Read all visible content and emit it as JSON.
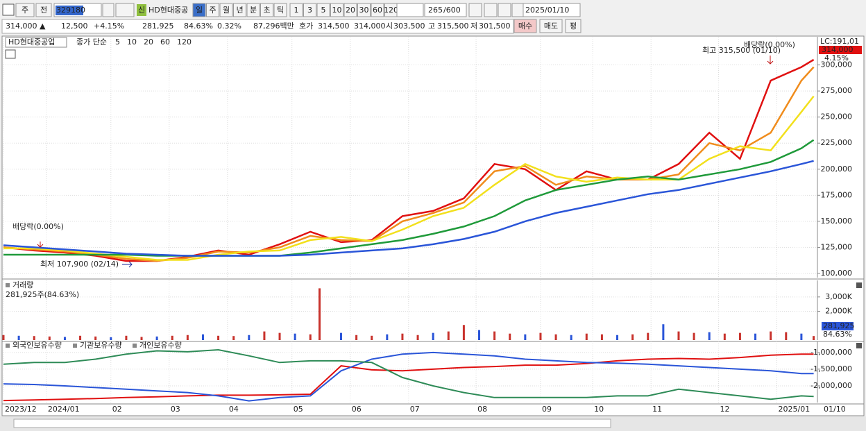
{
  "toolbar": {
    "period_type": "주",
    "prev": "전",
    "code": "329180",
    "badge": "신",
    "name": "HD현대중공",
    "periods": [
      "일",
      "주",
      "월",
      "년",
      "분",
      "초",
      "틱"
    ],
    "intervals": [
      "1",
      "3",
      "5",
      "10",
      "20",
      "30",
      "60",
      "120"
    ],
    "count": "265",
    "max": "/600",
    "date": "2025/01/10"
  },
  "quote": {
    "price": "314,000 ▲",
    "change": "12,500",
    "rate": "+4.15%",
    "volume": "281,925",
    "volume_rate": "84.63%",
    "turnover": "0.32%",
    "amount": "87,296백만",
    "bid_label": "호가",
    "ask": "314,500",
    "bid": "314,000",
    "open_label": "시",
    "open": "303,500",
    "high_label": "고",
    "high": "315,500",
    "low_label": "저",
    "low": "301,500",
    "buy": "매수",
    "sell": "매도",
    "eval": "평"
  },
  "chart_data": [
    {
      "type": "line",
      "title": "HD현대중공업",
      "legend_label": "종가 단순",
      "xlim": [
        0,
        265
      ],
      "ylim": [
        96000,
        327000
      ],
      "yticks": [
        {
          "value": 100000,
          "label": "100,000"
        },
        {
          "value": 125000,
          "label": "125,000"
        },
        {
          "value": 150000,
          "label": "150,000"
        },
        {
          "value": 175000,
          "label": "175,000"
        },
        {
          "value": 200000,
          "label": "200,000"
        },
        {
          "value": 225000,
          "label": "225,000"
        },
        {
          "value": 250000,
          "label": "250,000"
        },
        {
          "value": 275000,
          "label": "275,000"
        },
        {
          "value": 300000,
          "label": "300,000"
        }
      ],
      "x": [
        0,
        10,
        20,
        30,
        40,
        50,
        60,
        70,
        80,
        90,
        100,
        110,
        120,
        130,
        140,
        150,
        160,
        170,
        180,
        190,
        200,
        210,
        220,
        230,
        240,
        250,
        260,
        264
      ],
      "series": [
        {
          "name": "5",
          "color": "#e01010",
          "values": [
            125000,
            122000,
            120000,
            117000,
            112000,
            112000,
            116000,
            122000,
            118000,
            128000,
            140000,
            130000,
            132000,
            155000,
            160000,
            172000,
            205000,
            200000,
            180000,
            198000,
            190000,
            190000,
            205000,
            235000,
            210000,
            285000,
            298000,
            305000
          ]
        },
        {
          "name": "10",
          "color": "#f08c1c",
          "values": [
            125000,
            123000,
            121000,
            118000,
            114000,
            112000,
            115000,
            121000,
            120000,
            125000,
            136000,
            132000,
            131000,
            150000,
            158000,
            168000,
            198000,
            203000,
            185000,
            193000,
            190000,
            190000,
            195000,
            225000,
            218000,
            235000,
            285000,
            298000
          ]
        },
        {
          "name": "20",
          "color": "#f2e01c",
          "values": [
            124000,
            124000,
            122000,
            119000,
            116000,
            113000,
            113000,
            118000,
            121000,
            122000,
            132000,
            135000,
            131000,
            142000,
            155000,
            163000,
            185000,
            205000,
            193000,
            188000,
            192000,
            190000,
            190000,
            210000,
            222000,
            218000,
            255000,
            270000
          ]
        },
        {
          "name": "60",
          "color": "#1f9a3a",
          "values": [
            118000,
            118000,
            118000,
            118000,
            118000,
            117000,
            117000,
            117000,
            117000,
            117000,
            120000,
            124000,
            128000,
            132000,
            138000,
            145000,
            155000,
            170000,
            180000,
            185000,
            190000,
            193000,
            190000,
            195000,
            200000,
            207000,
            220000,
            228000
          ]
        },
        {
          "name": "120",
          "color": "#2a55d8",
          "values": [
            127000,
            125000,
            123000,
            121000,
            119000,
            118000,
            117000,
            117000,
            117000,
            117000,
            118000,
            120000,
            122000,
            124000,
            128000,
            133000,
            140000,
            150000,
            158000,
            164000,
            170000,
            176000,
            180000,
            186000,
            192000,
            198000,
            205000,
            208000
          ]
        }
      ],
      "annotations": [
        "배당락(0.00%)",
        "최저 107,900 (02/14)",
        "최고 315,500 (01/10)",
        "배당락(0.00%)"
      ],
      "right_labels": [
        "LC:191,01",
        "314,000",
        "4.15%"
      ]
    },
    {
      "type": "bar",
      "title": "거래량",
      "subtitle": "281,925주(84.63%)",
      "xlim": [
        0,
        265
      ],
      "ylim": [
        0,
        4150000
      ],
      "color": "#c8322c",
      "yticks": [
        {
          "value": 2000000,
          "label": "2,000K"
        },
        {
          "value": 3000000,
          "label": "3,000K"
        }
      ],
      "x": [
        0,
        5,
        10,
        15,
        20,
        25,
        30,
        35,
        40,
        45,
        50,
        55,
        60,
        65,
        70,
        75,
        80,
        85,
        90,
        95,
        100,
        103,
        110,
        115,
        120,
        125,
        130,
        135,
        140,
        145,
        150,
        155,
        160,
        165,
        170,
        175,
        180,
        185,
        190,
        195,
        200,
        205,
        210,
        215,
        220,
        225,
        230,
        235,
        240,
        245,
        250,
        255,
        260,
        264
      ],
      "values": [
        350000,
        300000,
        280000,
        250000,
        220000,
        300000,
        250000,
        200000,
        300000,
        220000,
        250000,
        300000,
        350000,
        400000,
        300000,
        280000,
        350000,
        600000,
        500000,
        450000,
        400000,
        3600000,
        500000,
        350000,
        300000,
        400000,
        450000,
        350000,
        500000,
        600000,
        1050000,
        700000,
        600000,
        450000,
        400000,
        500000,
        400000,
        350000,
        450000,
        400000,
        350000,
        400000,
        500000,
        1100000,
        600000,
        500000,
        550000,
        450000,
        500000,
        450000,
        600000,
        550000,
        450000,
        281925
      ],
      "right_labels": [
        "281,925",
        "84.63%"
      ]
    },
    {
      "type": "line",
      "xlim": [
        0,
        265
      ],
      "ylim": [
        -2500000,
        -670000
      ],
      "yticks": [
        {
          "value": -1000000,
          "label": "-1,000,000"
        },
        {
          "value": -1500000,
          "label": "-1,500,000"
        },
        {
          "value": -2000000,
          "label": "-2,000,000"
        }
      ],
      "xticks": [
        {
          "value": 0,
          "label": "2023/12"
        },
        {
          "value": 14,
          "label": "2024/01"
        },
        {
          "value": 35,
          "label": "02"
        },
        {
          "value": 54,
          "label": "03"
        },
        {
          "value": 73,
          "label": "04"
        },
        {
          "value": 94,
          "label": "05"
        },
        {
          "value": 113,
          "label": "06"
        },
        {
          "value": 132,
          "label": "07"
        },
        {
          "value": 154,
          "label": "08"
        },
        {
          "value": 175,
          "label": "09"
        },
        {
          "value": 192,
          "label": "10"
        },
        {
          "value": 211,
          "label": "11"
        },
        {
          "value": 233,
          "label": "12"
        },
        {
          "value": 252,
          "label": "2025/01"
        }
      ],
      "last_date": "01/10",
      "x": [
        0,
        10,
        20,
        30,
        40,
        50,
        60,
        70,
        80,
        90,
        100,
        110,
        120,
        130,
        140,
        150,
        160,
        170,
        180,
        190,
        200,
        210,
        220,
        230,
        240,
        250,
        260,
        264
      ],
      "series": [
        {
          "name": "외국인보유수량",
          "color": "#e01010",
          "values": [
            -2440000,
            -2420000,
            -2400000,
            -2380000,
            -2350000,
            -2330000,
            -2300000,
            -2280000,
            -2280000,
            -2270000,
            -2250000,
            -1400000,
            -1520000,
            -1550000,
            -1500000,
            -1450000,
            -1420000,
            -1380000,
            -1380000,
            -1330000,
            -1250000,
            -1200000,
            -1180000,
            -1200000,
            -1150000,
            -1080000,
            -1050000,
            -1050000
          ]
        },
        {
          "name": "기관보유수량",
          "color": "#2a55d8",
          "values": [
            -1940000,
            -1960000,
            -2000000,
            -2050000,
            -2100000,
            -2150000,
            -2200000,
            -2300000,
            -2450000,
            -2350000,
            -2300000,
            -1550000,
            -1200000,
            -1050000,
            -1000000,
            -1050000,
            -1100000,
            -1200000,
            -1250000,
            -1300000,
            -1320000,
            -1350000,
            -1400000,
            -1450000,
            -1500000,
            -1550000,
            -1630000,
            -1630000
          ]
        },
        {
          "name": "개인보유수량",
          "color": "#2e8b57",
          "values": [
            -1350000,
            -1300000,
            -1300000,
            -1200000,
            -1050000,
            -950000,
            -980000,
            -920000,
            -1100000,
            -1300000,
            -1250000,
            -1250000,
            -1300000,
            -1750000,
            -2000000,
            -2200000,
            -2350000,
            -2350000,
            -2350000,
            -2350000,
            -2300000,
            -2300000,
            -2100000,
            -2200000,
            -2300000,
            -2400000,
            -2300000,
            -2320000
          ]
        }
      ]
    }
  ]
}
